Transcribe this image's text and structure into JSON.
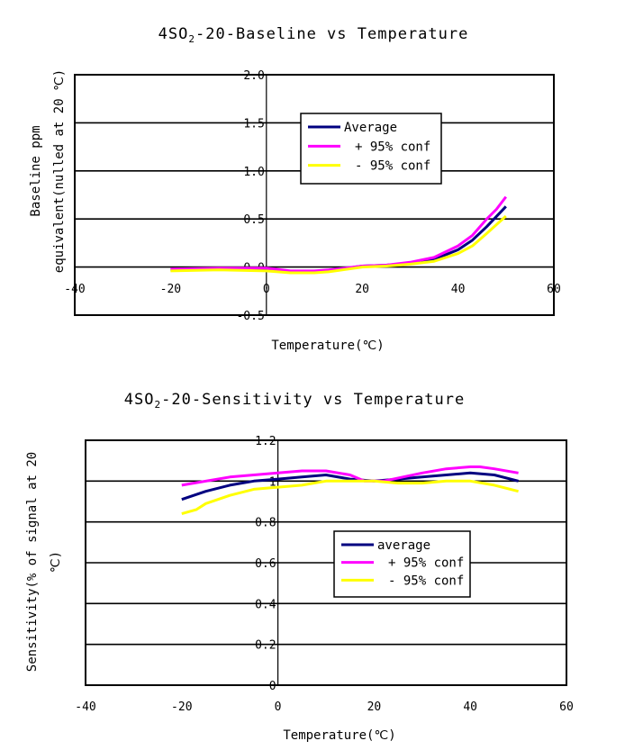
{
  "chart_data": [
    {
      "type": "line",
      "title": {
        "prefix": "4SO",
        "sub": "2",
        "suffix": "-20-Baseline vs Temperature"
      },
      "xlabel": "Temperature(℃)",
      "ylabel": [
        "Baseline ppm",
        "equivalent(nulled at 20 ℃)"
      ],
      "xlim": [
        -40,
        60
      ],
      "ylim": [
        -0.5,
        2.0
      ],
      "xticks": [
        "-40",
        "-20",
        "0",
        "20",
        "40",
        "60"
      ],
      "yticks": [
        "-0.5",
        "0.0",
        "0.5",
        "1.0",
        "1.5",
        "2.0"
      ],
      "grid": "horizontal",
      "legend": "center-right",
      "series": [
        {
          "name": "Average",
          "color": "#000080",
          "x": [
            -20,
            -10,
            0,
            5,
            10,
            13,
            20,
            25,
            30,
            35,
            40,
            43,
            46,
            50
          ],
          "y": [
            -0.03,
            -0.02,
            -0.03,
            -0.05,
            -0.05,
            -0.04,
            0.01,
            0.02,
            0.04,
            0.08,
            0.18,
            0.28,
            0.42,
            0.63
          ]
        },
        {
          "name": "+ 95% conf",
          "color": "#ff00ff",
          "x": [
            -20,
            -10,
            0,
            5,
            10,
            13,
            20,
            25,
            30,
            35,
            40,
            43,
            46,
            48,
            50
          ],
          "y": [
            -0.02,
            -0.01,
            -0.01,
            -0.04,
            -0.04,
            -0.03,
            0.01,
            0.02,
            0.05,
            0.1,
            0.22,
            0.33,
            0.5,
            0.6,
            0.73
          ]
        },
        {
          "name": "- 95% conf",
          "color": "#ffff00",
          "x": [
            -20,
            -10,
            0,
            5,
            10,
            13,
            20,
            25,
            30,
            35,
            40,
            43,
            46,
            50
          ],
          "y": [
            -0.04,
            -0.03,
            -0.04,
            -0.06,
            -0.06,
            -0.05,
            0.0,
            0.01,
            0.03,
            0.06,
            0.14,
            0.22,
            0.35,
            0.53
          ]
        }
      ]
    },
    {
      "type": "line",
      "title": {
        "prefix": "4SO",
        "sub": "2",
        "suffix": "-20-Sensitivity vs Temperature"
      },
      "xlabel": "Temperature(℃)",
      "ylabel": [
        "Sensitivity(% of signal at 20",
        "℃)"
      ],
      "xlim": [
        -40,
        60
      ],
      "ylim": [
        0,
        1.2
      ],
      "xticks": [
        "-40",
        "-20",
        "0",
        "20",
        "40",
        "60"
      ],
      "yticks": [
        "0",
        "0.2",
        "0.4",
        "0.6",
        "0.8",
        "1",
        "1.2"
      ],
      "grid": "horizontal",
      "legend": "center-right",
      "series": [
        {
          "name": "average",
          "color": "#000080",
          "x": [
            -20,
            -15,
            -10,
            -5,
            0,
            5,
            10,
            15,
            20,
            25,
            30,
            35,
            40,
            45,
            50
          ],
          "y": [
            0.91,
            0.95,
            0.98,
            1.0,
            1.01,
            1.02,
            1.03,
            1.01,
            1.0,
            1.01,
            1.02,
            1.03,
            1.04,
            1.03,
            1.0
          ]
        },
        {
          "name": "+ 95% conf",
          "color": "#ff00ff",
          "x": [
            -20,
            -10,
            -5,
            0,
            5,
            10,
            15,
            18,
            22,
            30,
            35,
            40,
            42,
            45,
            50
          ],
          "y": [
            0.98,
            1.02,
            1.03,
            1.04,
            1.05,
            1.05,
            1.03,
            1.0,
            1.0,
            1.04,
            1.06,
            1.07,
            1.07,
            1.06,
            1.04
          ]
        },
        {
          "name": "- 95% conf",
          "color": "#ffff00",
          "x": [
            -20,
            -17,
            -15,
            -10,
            -5,
            0,
            5,
            10,
            20,
            25,
            30,
            35,
            40,
            45,
            50
          ],
          "y": [
            0.84,
            0.86,
            0.89,
            0.93,
            0.96,
            0.97,
            0.98,
            1.0,
            1.0,
            0.99,
            0.99,
            1.0,
            1.0,
            0.98,
            0.95
          ]
        }
      ]
    }
  ]
}
